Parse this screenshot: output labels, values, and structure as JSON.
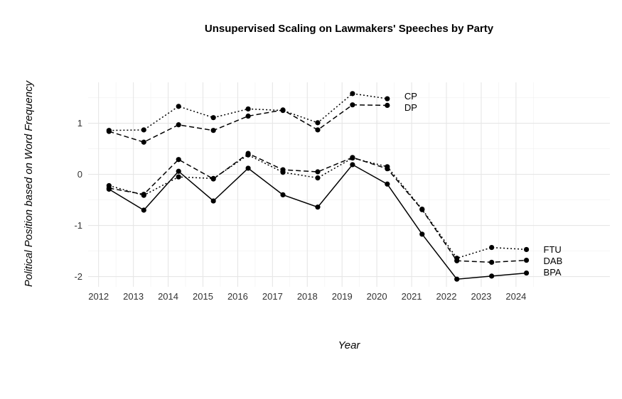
{
  "chart_data": {
    "type": "line",
    "title": "Unsupervised Scaling on Lawmakers' Speeches by Party",
    "xlabel": "Year",
    "ylabel": "Political Position based on Word Frequency",
    "xlim": [
      2011.7,
      2026.7
    ],
    "ylim": [
      -2.2,
      1.8
    ],
    "x_ticks": [
      2012,
      2013,
      2014,
      2015,
      2016,
      2017,
      2018,
      2019,
      2020,
      2021,
      2022,
      2023,
      2024
    ],
    "y_ticks": [
      -2,
      -1,
      0,
      1
    ],
    "grid": true,
    "series": [
      {
        "name": "CP",
        "linestyle": "dotted",
        "x": [
          2012.3,
          2013.3,
          2014.3,
          2015.3,
          2016.3,
          2017.3,
          2018.3,
          2019.3,
          2020.3
        ],
        "y": [
          0.86,
          0.87,
          1.33,
          1.11,
          1.28,
          1.25,
          1.01,
          1.58,
          1.48
        ]
      },
      {
        "name": "DP",
        "linestyle": "dashed",
        "x": [
          2012.3,
          2013.3,
          2014.3,
          2015.3,
          2016.3,
          2017.3,
          2018.3,
          2019.3,
          2020.3
        ],
        "y": [
          0.84,
          0.63,
          0.97,
          0.86,
          1.14,
          1.26,
          0.87,
          1.36,
          1.35
        ]
      },
      {
        "name": "FTU",
        "linestyle": "dotted",
        "x": [
          2012.3,
          2013.3,
          2014.3,
          2015.3,
          2016.3,
          2017.3,
          2018.3,
          2019.3,
          2020.3,
          2021.3,
          2022.3,
          2023.3,
          2024.3
        ],
        "y": [
          -0.22,
          -0.41,
          -0.05,
          -0.08,
          0.38,
          0.04,
          -0.07,
          0.32,
          0.15,
          -0.68,
          -1.64,
          -1.43,
          -1.47
        ]
      },
      {
        "name": "DAB",
        "linestyle": "dashed",
        "x": [
          2012.3,
          2013.3,
          2014.3,
          2015.3,
          2016.3,
          2017.3,
          2018.3,
          2019.3,
          2020.3,
          2021.3,
          2022.3,
          2023.3,
          2024.3
        ],
        "y": [
          -0.27,
          -0.39,
          0.29,
          -0.09,
          0.41,
          0.09,
          0.05,
          0.33,
          0.11,
          -0.69,
          -1.69,
          -1.72,
          -1.68
        ]
      },
      {
        "name": "BPA",
        "linestyle": "solid",
        "x": [
          2012.3,
          2013.3,
          2014.3,
          2015.3,
          2016.3,
          2017.3,
          2018.3,
          2019.3,
          2020.3,
          2021.3,
          2022.3,
          2023.3,
          2024.3
        ],
        "y": [
          -0.29,
          -0.7,
          0.06,
          -0.52,
          0.12,
          -0.4,
          -0.64,
          0.19,
          -0.19,
          -1.17,
          -2.05,
          -1.99,
          -1.93
        ]
      }
    ]
  }
}
